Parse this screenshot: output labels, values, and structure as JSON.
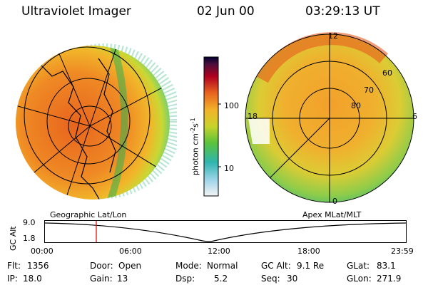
{
  "header": {
    "instrument": "Ultraviolet Imager",
    "date": "02 Jun 00",
    "time": "03:29:13 UT"
  },
  "colorbar": {
    "unit_label": "photon cm",
    "ticks": [
      "100",
      "10"
    ]
  },
  "polar_plot": {
    "mlt_labels": [
      "12",
      "18",
      "6",
      "0"
    ],
    "lat_labels": [
      "60",
      "70",
      "80"
    ]
  },
  "frame_labels": {
    "left": "Geographic Lat/Lon",
    "right": "Apex MLat/MLT"
  },
  "timeline": {
    "axis_label": "GC Alt",
    "y_top": "9.0",
    "y_bottom": "1.8",
    "ticks": [
      "00:00",
      "06:00",
      "12:00",
      "18:00",
      "23:59"
    ],
    "marker_time": "03:29"
  },
  "info": {
    "flt_label": "Flt:",
    "flt_value": "1356",
    "door_label": "Door:",
    "door_value": "Open",
    "mode_label": "Mode:",
    "mode_value": "Normal",
    "gcalt_label": "GC Alt:",
    "gcalt_value": "9.1 Re",
    "glat_label": "GLat:",
    "glat_value": "83.1",
    "ip_label": "IP:",
    "ip_value": "18.0",
    "gain_label": "Gain:",
    "gain_value": "13",
    "dsp_label": "Dsp:",
    "dsp_value": "5.2",
    "seq_label": "Seq:",
    "seq_value": "30",
    "glon_label": "GLon:",
    "glon_value": "271.9"
  },
  "colors": {
    "aurora_core": "#e8641e",
    "aurora_mid": "#f0b428",
    "aurora_edge": "#9ad23c",
    "marker": "#e00000"
  }
}
